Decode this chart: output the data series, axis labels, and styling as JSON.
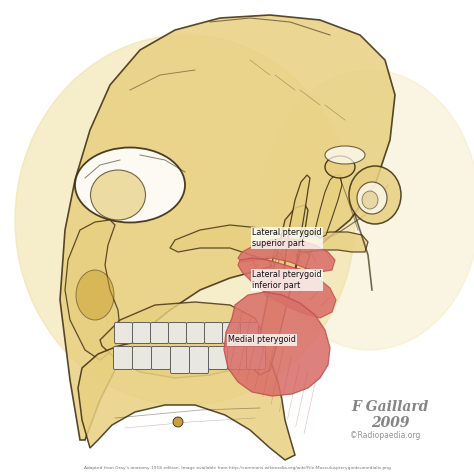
{
  "background_color": "#ffffff",
  "skull_yellow": "#e8d080",
  "skull_yellow_light": "#f0dfa0",
  "skull_outline": "#3a2a10",
  "muscle_red": "#d9706a",
  "muscle_red_dark": "#c05050",
  "muscle_red_light": "#e89090",
  "white": "#ffffff",
  "teeth_color": "#e8e8e0",
  "teeth_outline": "#606060",
  "label_bg": "#ffffffcc",
  "label_color": "#111111",
  "credit_color": "#707070",
  "footer_color": "#555555",
  "credit_text": "F Gaillard",
  "credit_year": "2009",
  "watermark": "©Radiopaedia.org",
  "footer": "Adapted from Gray's anatomy 1918 edition. Image available from http://commons.wikimedia.org/wiki/File:Musculuspterygoideumedialis.png",
  "label_lat_sup": "Lateral pterygoid\nsuperior part",
  "label_lat_inf": "Lateral pterygoid\ninferior part",
  "label_med": "Medial pterygoid"
}
